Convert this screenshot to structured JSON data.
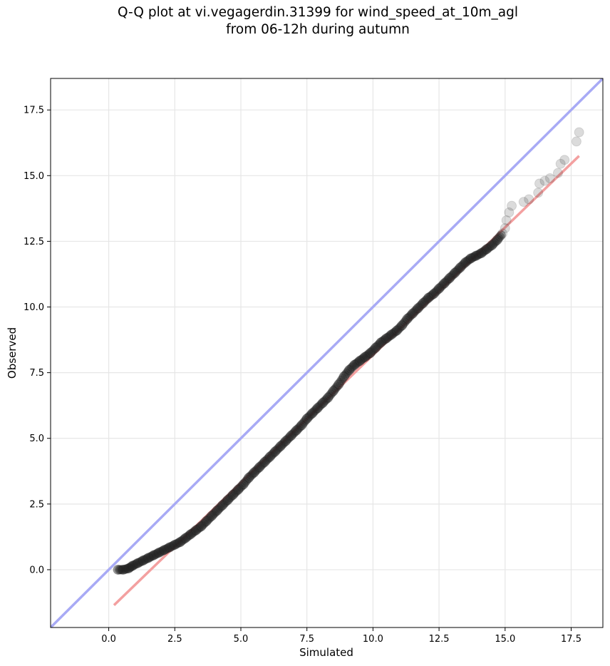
{
  "title_line1": "Q-Q plot at vi.vegagerdin.31399 for wind_speed_at_10m_agl",
  "title_line2": "from 06-12h during autumn",
  "colors": {
    "identity_line": "#a8aaf5",
    "fit_line": "#f3a0a0",
    "points": "#222222",
    "grid": "#e6e6e6"
  },
  "chart_data": {
    "type": "scatter",
    "xlabel": "Simulated",
    "ylabel": "Observed",
    "xlim": [
      -2.2,
      18.7
    ],
    "ylim": [
      -2.2,
      18.7
    ],
    "xticks": [
      0.0,
      2.5,
      5.0,
      7.5,
      10.0,
      12.5,
      15.0,
      17.5
    ],
    "yticks": [
      0.0,
      2.5,
      5.0,
      7.5,
      10.0,
      12.5,
      15.0,
      17.5
    ],
    "xtick_labels": [
      "0.0",
      "2.5",
      "5.0",
      "7.5",
      "10.0",
      "12.5",
      "15.0",
      "17.5"
    ],
    "ytick_labels": [
      "0.0",
      "2.5",
      "5.0",
      "7.5",
      "10.0",
      "12.5",
      "15.0",
      "17.5"
    ],
    "grid": true,
    "reference_line": {
      "x": [
        -2.2,
        18.7
      ],
      "y": [
        -2.2,
        18.7
      ]
    },
    "fit_line": {
      "x": [
        0.2,
        17.8
      ],
      "y": [
        -1.35,
        15.75
      ]
    },
    "points": [
      {
        "x": 0.35,
        "y": 0.0
      },
      {
        "x": 0.55,
        "y": 0.0
      },
      {
        "x": 0.75,
        "y": 0.05
      },
      {
        "x": 0.9,
        "y": 0.15
      },
      {
        "x": 1.1,
        "y": 0.25
      },
      {
        "x": 1.3,
        "y": 0.35
      },
      {
        "x": 1.5,
        "y": 0.45
      },
      {
        "x": 1.7,
        "y": 0.55
      },
      {
        "x": 1.9,
        "y": 0.65
      },
      {
        "x": 2.1,
        "y": 0.75
      },
      {
        "x": 2.3,
        "y": 0.85
      },
      {
        "x": 2.5,
        "y": 0.95
      },
      {
        "x": 2.7,
        "y": 1.05
      },
      {
        "x": 2.9,
        "y": 1.2
      },
      {
        "x": 3.1,
        "y": 1.35
      },
      {
        "x": 3.3,
        "y": 1.5
      },
      {
        "x": 3.5,
        "y": 1.65
      },
      {
        "x": 3.7,
        "y": 1.85
      },
      {
        "x": 3.9,
        "y": 2.05
      },
      {
        "x": 4.1,
        "y": 2.25
      },
      {
        "x": 4.3,
        "y": 2.45
      },
      {
        "x": 4.5,
        "y": 2.65
      },
      {
        "x": 4.7,
        "y": 2.85
      },
      {
        "x": 4.9,
        "y": 3.05
      },
      {
        "x": 5.1,
        "y": 3.25
      },
      {
        "x": 5.3,
        "y": 3.5
      },
      {
        "x": 5.5,
        "y": 3.7
      },
      {
        "x": 5.7,
        "y": 3.9
      },
      {
        "x": 5.9,
        "y": 4.1
      },
      {
        "x": 6.1,
        "y": 4.3
      },
      {
        "x": 6.3,
        "y": 4.5
      },
      {
        "x": 6.5,
        "y": 4.7
      },
      {
        "x": 6.7,
        "y": 4.9
      },
      {
        "x": 6.9,
        "y": 5.1
      },
      {
        "x": 7.1,
        "y": 5.3
      },
      {
        "x": 7.3,
        "y": 5.5
      },
      {
        "x": 7.5,
        "y": 5.75
      },
      {
        "x": 7.7,
        "y": 5.95
      },
      {
        "x": 7.9,
        "y": 6.15
      },
      {
        "x": 8.1,
        "y": 6.35
      },
      {
        "x": 8.3,
        "y": 6.55
      },
      {
        "x": 8.5,
        "y": 6.8
      },
      {
        "x": 8.7,
        "y": 7.05
      },
      {
        "x": 8.9,
        "y": 7.35
      },
      {
        "x": 9.1,
        "y": 7.6
      },
      {
        "x": 9.3,
        "y": 7.8
      },
      {
        "x": 9.5,
        "y": 7.95
      },
      {
        "x": 9.7,
        "y": 8.1
      },
      {
        "x": 9.9,
        "y": 8.25
      },
      {
        "x": 10.1,
        "y": 8.45
      },
      {
        "x": 10.3,
        "y": 8.65
      },
      {
        "x": 10.5,
        "y": 8.8
      },
      {
        "x": 10.7,
        "y": 8.95
      },
      {
        "x": 10.9,
        "y": 9.1
      },
      {
        "x": 11.1,
        "y": 9.3
      },
      {
        "x": 11.3,
        "y": 9.55
      },
      {
        "x": 11.5,
        "y": 9.75
      },
      {
        "x": 11.7,
        "y": 9.95
      },
      {
        "x": 11.9,
        "y": 10.15
      },
      {
        "x": 12.1,
        "y": 10.35
      },
      {
        "x": 12.3,
        "y": 10.5
      },
      {
        "x": 12.5,
        "y": 10.7
      },
      {
        "x": 12.7,
        "y": 10.9
      },
      {
        "x": 12.9,
        "y": 11.1
      },
      {
        "x": 13.1,
        "y": 11.3
      },
      {
        "x": 13.3,
        "y": 11.5
      },
      {
        "x": 13.5,
        "y": 11.7
      },
      {
        "x": 13.7,
        "y": 11.85
      },
      {
        "x": 13.9,
        "y": 11.95
      },
      {
        "x": 14.1,
        "y": 12.05
      },
      {
        "x": 14.3,
        "y": 12.2
      },
      {
        "x": 14.5,
        "y": 12.35
      },
      {
        "x": 14.7,
        "y": 12.55
      },
      {
        "x": 14.9,
        "y": 12.8
      },
      {
        "x": 15.0,
        "y": 13.0
      },
      {
        "x": 15.05,
        "y": 13.3
      },
      {
        "x": 15.15,
        "y": 13.6
      },
      {
        "x": 15.25,
        "y": 13.85
      },
      {
        "x": 15.7,
        "y": 14.0
      },
      {
        "x": 15.9,
        "y": 14.1
      },
      {
        "x": 16.25,
        "y": 14.35
      },
      {
        "x": 16.3,
        "y": 14.7
      },
      {
        "x": 16.5,
        "y": 14.8
      },
      {
        "x": 16.7,
        "y": 14.9
      },
      {
        "x": 17.0,
        "y": 15.1
      },
      {
        "x": 17.1,
        "y": 15.45
      },
      {
        "x": 17.25,
        "y": 15.6
      },
      {
        "x": 17.7,
        "y": 16.3
      },
      {
        "x": 17.8,
        "y": 16.65
      }
    ]
  }
}
